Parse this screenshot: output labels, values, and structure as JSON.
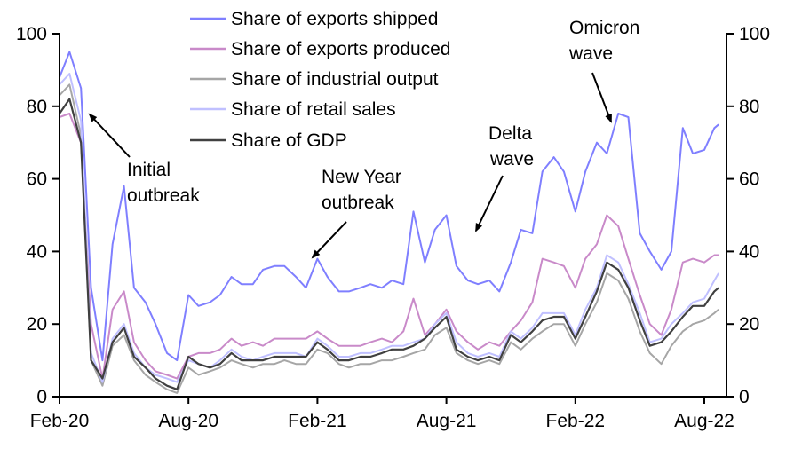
{
  "chart_data": {
    "type": "line",
    "title": "",
    "xlabel": "",
    "ylabel": "",
    "ylim": [
      0,
      100
    ],
    "y_ticks": [
      "0",
      "20",
      "40",
      "60",
      "80",
      "100"
    ],
    "y_ticks_right": [
      "0",
      "20",
      "40",
      "60",
      "80",
      "100"
    ],
    "x_ticks": [
      {
        "label": "Feb-20",
        "date": "2020-02-01"
      },
      {
        "label": "Aug-20",
        "date": "2020-08-01"
      },
      {
        "label": "Feb-21",
        "date": "2021-02-01"
      },
      {
        "label": "Aug-21",
        "date": "2021-08-01"
      },
      {
        "label": "Feb-22",
        "date": "2022-02-01"
      },
      {
        "label": "Aug-22",
        "date": "2022-08-01"
      }
    ],
    "xlim": [
      "2020-02-01",
      "2022-09-01"
    ],
    "grid": false,
    "legend_position": "top-center",
    "x": [
      "2020-02-01",
      "2020-02-15",
      "2020-03-01",
      "2020-03-15",
      "2020-04-01",
      "2020-04-15",
      "2020-05-01",
      "2020-05-15",
      "2020-06-01",
      "2020-06-15",
      "2020-07-01",
      "2020-07-15",
      "2020-08-01",
      "2020-08-15",
      "2020-09-01",
      "2020-09-15",
      "2020-10-01",
      "2020-10-15",
      "2020-11-01",
      "2020-11-15",
      "2020-12-01",
      "2020-12-15",
      "2021-01-01",
      "2021-01-15",
      "2021-02-01",
      "2021-02-15",
      "2021-03-01",
      "2021-03-15",
      "2021-04-01",
      "2021-04-15",
      "2021-05-01",
      "2021-05-15",
      "2021-06-01",
      "2021-06-15",
      "2021-07-01",
      "2021-07-15",
      "2021-08-01",
      "2021-08-15",
      "2021-09-01",
      "2021-09-15",
      "2021-10-01",
      "2021-10-15",
      "2021-11-01",
      "2021-11-15",
      "2021-12-01",
      "2021-12-15",
      "2022-01-01",
      "2022-01-15",
      "2022-02-01",
      "2022-02-15",
      "2022-03-01",
      "2022-03-15",
      "2022-04-01",
      "2022-04-15",
      "2022-05-01",
      "2022-05-15",
      "2022-06-01",
      "2022-06-15",
      "2022-07-01",
      "2022-07-15",
      "2022-08-01",
      "2022-08-15",
      "2022-08-21"
    ],
    "series": [
      {
        "name": "Share of exports shipped",
        "color": "#7f7fff",
        "values": [
          88,
          95,
          85,
          30,
          10,
          42,
          58,
          30,
          26,
          20,
          12,
          10,
          28,
          25,
          26,
          28,
          33,
          31,
          31,
          35,
          36,
          36,
          33,
          30,
          38,
          33,
          29,
          29,
          30,
          31,
          30,
          32,
          31,
          51,
          37,
          46,
          50,
          36,
          32,
          31,
          32,
          29,
          37,
          46,
          45,
          62,
          66,
          62,
          51,
          62,
          70,
          67,
          78,
          77,
          45,
          40,
          35,
          40,
          74,
          67,
          68,
          74,
          75
        ]
      },
      {
        "name": "Share of exports produced",
        "color": "#c98ac9",
        "values": [
          77,
          78,
          70,
          20,
          5,
          24,
          29,
          15,
          10,
          7,
          6,
          5,
          11,
          12,
          12,
          13,
          16,
          14,
          15,
          14,
          16,
          16,
          16,
          16,
          18,
          16,
          14,
          14,
          14,
          15,
          16,
          15,
          18,
          27,
          17,
          20,
          24,
          18,
          15,
          13,
          15,
          14,
          18,
          21,
          26,
          38,
          37,
          36,
          30,
          38,
          42,
          50,
          47,
          38,
          28,
          20,
          17,
          24,
          37,
          38,
          37,
          39,
          39
        ]
      },
      {
        "name": "Share of industrial output",
        "color": "#a6a6a6",
        "values": [
          83,
          86,
          72,
          10,
          3,
          14,
          17,
          10,
          6,
          4,
          2,
          1,
          8,
          6,
          7,
          8,
          10,
          9,
          8,
          9,
          9,
          10,
          9,
          9,
          13,
          12,
          9,
          8,
          9,
          9,
          10,
          10,
          11,
          12,
          13,
          17,
          19,
          12,
          10,
          9,
          10,
          9,
          15,
          13,
          16,
          18,
          20,
          20,
          14,
          20,
          26,
          34,
          32,
          27,
          18,
          12,
          9,
          14,
          18,
          20,
          21,
          23,
          24
        ]
      },
      {
        "name": "Share of retail sales",
        "color": "#c0c0ff",
        "values": [
          86,
          89,
          76,
          12,
          4,
          16,
          20,
          12,
          8,
          6,
          5,
          4,
          10,
          9,
          8,
          10,
          13,
          11,
          10,
          11,
          12,
          12,
          12,
          11,
          16,
          14,
          11,
          11,
          12,
          12,
          13,
          14,
          14,
          15,
          16,
          20,
          23,
          15,
          12,
          11,
          12,
          11,
          18,
          16,
          19,
          23,
          23,
          23,
          17,
          24,
          30,
          39,
          37,
          31,
          23,
          15,
          16,
          20,
          23,
          26,
          27,
          32,
          34
        ]
      },
      {
        "name": "Share of GDP",
        "color": "#404040",
        "values": [
          78,
          82,
          70,
          10,
          5,
          15,
          19,
          11,
          8,
          5,
          3,
          2,
          11,
          9,
          8,
          9,
          12,
          10,
          10,
          10,
          11,
          11,
          11,
          11,
          15,
          13,
          10,
          10,
          11,
          11,
          12,
          13,
          13,
          14,
          16,
          19,
          22,
          13,
          11,
          10,
          11,
          10,
          17,
          15,
          18,
          21,
          22,
          22,
          16,
          22,
          29,
          37,
          35,
          30,
          21,
          14,
          15,
          18,
          22,
          25,
          25,
          29,
          30
        ]
      }
    ],
    "annotations": [
      {
        "lines": [
          "Initial",
          "outbreak"
        ]
      },
      {
        "lines": [
          "New Year",
          "outbreak"
        ]
      },
      {
        "lines": [
          "Delta",
          "wave"
        ]
      },
      {
        "lines": [
          "Omicron",
          "wave"
        ]
      }
    ]
  }
}
